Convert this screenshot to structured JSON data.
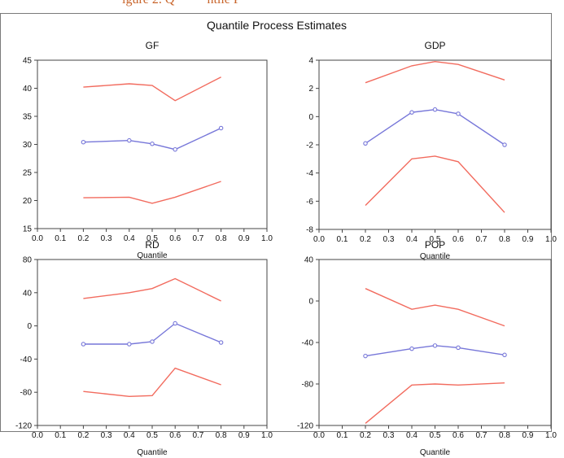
{
  "header": {
    "cutoff_text": "igure 2. Q",
    "cutoff_suffix": "ntile P"
  },
  "figure": {
    "title": "Quantile Process Estimates"
  },
  "colors": {
    "bounds": "#f26b5e",
    "estimate": "#7777d9",
    "axis": "#444444"
  },
  "chart_data": [
    {
      "type": "line",
      "title": "GF",
      "xlabel": "Quantile",
      "ylabel": "",
      "xlim": [
        0.0,
        1.0
      ],
      "ylim": [
        15,
        45
      ],
      "xticks": [
        "0.0",
        "0.1",
        "0.2",
        "0.3",
        "0.4",
        "0.5",
        "0.6",
        "0.7",
        "0.8",
        "0.9",
        "1.0"
      ],
      "yticks": [
        "15",
        "20",
        "25",
        "30",
        "35",
        "40",
        "45"
      ],
      "x": [
        0.2,
        0.4,
        0.5,
        0.6,
        0.8
      ],
      "series": [
        {
          "role": "upper",
          "values": [
            40.2,
            40.8,
            40.5,
            37.8,
            42.0
          ]
        },
        {
          "role": "estimate",
          "values": [
            30.4,
            30.7,
            30.1,
            29.1,
            32.9
          ]
        },
        {
          "role": "lower",
          "values": [
            20.5,
            20.6,
            19.5,
            20.6,
            23.4
          ]
        }
      ]
    },
    {
      "type": "line",
      "title": "GDP",
      "xlabel": "Quantile",
      "ylabel": "",
      "xlim": [
        0.0,
        1.0
      ],
      "ylim": [
        -8,
        4
      ],
      "xticks": [
        "0.0",
        "0.1",
        "0.2",
        "0.3",
        "0.4",
        "0.5",
        "0.6",
        "0.7",
        "0.8",
        "0.9",
        "1.0"
      ],
      "yticks": [
        "-8",
        "-6",
        "-4",
        "-2",
        "0",
        "2",
        "4"
      ],
      "x": [
        0.2,
        0.4,
        0.5,
        0.6,
        0.8
      ],
      "series": [
        {
          "role": "upper",
          "values": [
            2.4,
            3.6,
            3.9,
            3.7,
            2.6
          ]
        },
        {
          "role": "estimate",
          "values": [
            -1.9,
            0.3,
            0.5,
            0.2,
            -2.0
          ]
        },
        {
          "role": "lower",
          "values": [
            -6.3,
            -3.0,
            -2.8,
            -3.2,
            -6.8
          ]
        }
      ]
    },
    {
      "type": "line",
      "title": "RD",
      "xlabel": "Quantile",
      "ylabel": "",
      "xlim": [
        0.0,
        1.0
      ],
      "ylim": [
        -120,
        80
      ],
      "xticks": [
        "0.0",
        "0.1",
        "0.2",
        "0.3",
        "0.4",
        "0.5",
        "0.6",
        "0.7",
        "0.8",
        "0.9",
        "1.0"
      ],
      "yticks": [
        "-120",
        "-80",
        "-40",
        "0",
        "40",
        "80"
      ],
      "x": [
        0.2,
        0.4,
        0.5,
        0.6,
        0.8
      ],
      "series": [
        {
          "role": "upper",
          "values": [
            33,
            40,
            45,
            57,
            30
          ]
        },
        {
          "role": "estimate",
          "values": [
            -22,
            -22,
            -19,
            3,
            -20
          ]
        },
        {
          "role": "lower",
          "values": [
            -79,
            -85,
            -84,
            -51,
            -71
          ]
        }
      ]
    },
    {
      "type": "line",
      "title": "POP",
      "xlabel": "Quantile",
      "ylabel": "",
      "xlim": [
        0.0,
        1.0
      ],
      "ylim": [
        -120,
        40
      ],
      "xticks": [
        "0.0",
        "0.1",
        "0.2",
        "0.3",
        "0.4",
        "0.5",
        "0.6",
        "0.7",
        "0.8",
        "0.9",
        "1.0"
      ],
      "yticks": [
        "-120",
        "-80",
        "-40",
        "0",
        "40"
      ],
      "x": [
        0.2,
        0.4,
        0.5,
        0.6,
        0.8
      ],
      "series": [
        {
          "role": "upper",
          "values": [
            12,
            -8,
            -4,
            -8,
            -24
          ]
        },
        {
          "role": "estimate",
          "values": [
            -53,
            -46,
            -43,
            -45,
            -52
          ]
        },
        {
          "role": "lower",
          "values": [
            -118,
            -81,
            -80,
            -81,
            -79
          ]
        }
      ]
    }
  ]
}
